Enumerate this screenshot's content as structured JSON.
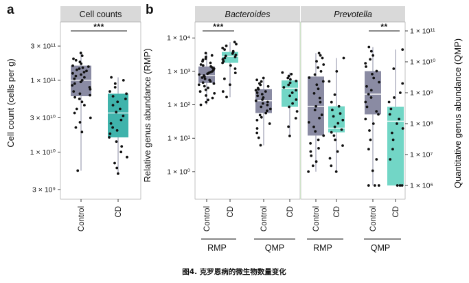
{
  "figure": {
    "caption": "图4. 克罗恩病的微生物数量变化"
  },
  "colors": {
    "control_box": "#8a8ba3",
    "cd_box_a": "#3fb3ab",
    "cd_box_b": "#72d6c6",
    "median": "#ffffff",
    "whisker": "#8a8ba3",
    "strip": "#d9d9d9",
    "points": "#111111"
  },
  "chart_data": [
    {
      "panel": "a",
      "type": "box",
      "title": "Cell counts",
      "ylabel": "Cell count (cells per g)",
      "yscale": "log",
      "ylim": [
        2200000000.0,
        650000000000.0
      ],
      "yticks": [
        {
          "value": 3000000000.0,
          "label": "3 × 10⁹"
        },
        {
          "value": 10000000000.0,
          "label": "1 × 10¹⁰"
        },
        {
          "value": 30000000000.0,
          "label": "3 × 10¹⁰"
        },
        {
          "value": 100000000000.0,
          "label": "1 × 10¹¹"
        },
        {
          "value": 300000000000.0,
          "label": "3 × 10¹¹"
        }
      ],
      "categories": [
        "Control",
        "CD"
      ],
      "boxes": [
        {
          "category": "Control",
          "min": 5500000000.0,
          "q1": 60000000000.0,
          "median": 100000000000.0,
          "q3": 160000000000.0,
          "max": 240000000000.0,
          "points": [
            240000000000.0,
            220000000000.0,
            200000000000.0,
            190000000000.0,
            180000000000.0,
            170000000000.0,
            160000000000.0,
            155000000000.0,
            150000000000.0,
            145000000000.0,
            140000000000.0,
            135000000000.0,
            130000000000.0,
            125000000000.0,
            120000000000.0,
            115000000000.0,
            110000000000.0,
            105000000000.0,
            100000000000.0,
            95000000000.0,
            90000000000.0,
            85000000000.0,
            80000000000.0,
            75000000000.0,
            70000000000.0,
            65000000000.0,
            62000000000.0,
            58000000000.0,
            55000000000.0,
            50000000000.0,
            45000000000.0,
            40000000000.0,
            35000000000.0,
            30000000000.0,
            26000000000.0,
            22000000000.0,
            19000000000.0,
            5500000000.0
          ]
        },
        {
          "category": "CD",
          "min": 5000000000.0,
          "q1": 16000000000.0,
          "median": 35000000000.0,
          "q3": 65000000000.0,
          "max": 110000000000.0,
          "points": [
            110000000000.0,
            100000000000.0,
            90000000000.0,
            80000000000.0,
            70000000000.0,
            65000000000.0,
            60000000000.0,
            55000000000.0,
            50000000000.0,
            45000000000.0,
            40000000000.0,
            36000000000.0,
            32000000000.0,
            28000000000.0,
            25000000000.0,
            22000000000.0,
            20000000000.0,
            18000000000.0,
            16000000000.0,
            14000000000.0,
            12000000000.0,
            10000000000.0,
            8500000000.0,
            7000000000.0,
            6000000000.0,
            5000000000.0
          ]
        }
      ],
      "significance": [
        {
          "label": "***",
          "between": [
            "Control",
            "CD"
          ]
        }
      ]
    },
    {
      "panel": "b",
      "type": "box",
      "facets": [
        "Bacteroides",
        "Prevotella"
      ],
      "ylabel_left": "Relative genus abundance (RMP)",
      "ylabel_right": "Quantitative genus abundance (QMP)",
      "yscale": "log",
      "ylim_left": [
        0.15,
        30000
      ],
      "yticks_left": [
        {
          "value": 1,
          "label": "1 × 10⁰"
        },
        {
          "value": 10,
          "label": "1 × 10¹"
        },
        {
          "value": 100,
          "label": "1 × 10²"
        },
        {
          "value": 1000,
          "label": "1 × 10³"
        },
        {
          "value": 10000,
          "label": "1 × 10⁴"
        }
      ],
      "yticks_right": [
        {
          "value": 1000000.0,
          "label": "1 × 10⁶"
        },
        {
          "value": 10000000.0,
          "label": "1 × 10⁷"
        },
        {
          "value": 100000000.0,
          "label": "1 × 10⁸"
        },
        {
          "value": 1000000000.0,
          "label": "1 × 10⁹"
        },
        {
          "value": 10000000000.0,
          "label": "1 × 10¹⁰"
        },
        {
          "value": 100000000000.0,
          "label": "1 × 10¹¹"
        }
      ],
      "groups": [
        {
          "label": "RMP",
          "facet": "Bacteroides",
          "scale": "left",
          "boxes": [
            {
              "category": "Control",
              "min": 100,
              "q1": 450,
              "median": 750,
              "q3": 1400,
              "max": 3500,
              "points": [
                3500,
                3000,
                2700,
                2400,
                2200,
                2000,
                1800,
                1600,
                1500,
                1400,
                1300,
                1200,
                1100,
                1000,
                950,
                900,
                850,
                800,
                750,
                700,
                650,
                600,
                550,
                500,
                460,
                430,
                400,
                360,
                320,
                280,
                250,
                220,
                190,
                160,
                140,
                120,
                100
              ]
            },
            {
              "category": "CD",
              "min": 170,
              "q1": 1800,
              "median": 2800,
              "q3": 3800,
              "max": 7500,
              "points": [
                7500,
                6500,
                5800,
                5000,
                4500,
                4000,
                3700,
                3400,
                3100,
                2900,
                2700,
                2500,
                2300,
                2000,
                1800,
                1500,
                1200,
                900,
                600,
                400,
                250,
                170
              ]
            }
          ],
          "significance": {
            "label": "***"
          }
        },
        {
          "label": "QMP",
          "facet": "Bacteroides",
          "scale": "right",
          "boxes": [
            {
              "category": "Control",
              "min": 20000000.0,
              "q1": 220000000.0,
              "median": 550000000.0,
              "q3": 1300000000.0,
              "max": 3000000000.0,
              "points": [
                3000000000.0,
                2600000000.0,
                2300000000.0,
                2000000000.0,
                1800000000.0,
                1600000000.0,
                1400000000.0,
                1300000000.0,
                1200000000.0,
                1100000000.0,
                1000000000.0,
                900000000.0,
                800000000.0,
                700000000.0,
                600000000.0,
                550000000.0,
                500000000.0,
                450000000.0,
                400000000.0,
                350000000.0,
                300000000.0,
                260000000.0,
                220000000.0,
                190000000.0,
                160000000.0,
                130000000.0,
                100000000.0,
                70000000.0,
                50000000.0,
                35000000.0,
                20000000.0
              ]
            },
            {
              "category": "CD",
              "min": 40000000.0,
              "q1": 350000000.0,
              "median": 1400000000.0,
              "q3": 2500000000.0,
              "max": 4500000000.0,
              "points": [
                4500000000.0,
                4000000000.0,
                3500000000.0,
                3000000000.0,
                2700000000.0,
                2400000000.0,
                2100000000.0,
                1800000000.0,
                1500000000.0,
                1200000000.0,
                1000000000.0,
                800000000.0,
                600000000.0,
                450000000.0,
                350000000.0,
                250000000.0,
                150000000.0,
                80000000.0,
                40000000.0
              ]
            }
          ]
        },
        {
          "label": "RMP",
          "facet": "Prevotella",
          "scale": "left",
          "boxes": [
            {
              "category": "Control",
              "min": 1.0,
              "q1": 12,
              "median": 90,
              "q3": 700,
              "max": 3500,
              "points": [
                3500,
                3000,
                2500,
                2000,
                1600,
                1300,
                1000,
                800,
                650,
                500,
                400,
                300,
                220,
                160,
                120,
                90,
                70,
                50,
                40,
                30,
                22,
                16,
                12,
                9,
                7,
                5,
                4,
                3,
                2,
                1.5,
                1.0
              ]
            },
            {
              "category": "CD",
              "min": 1.0,
              "q1": 15,
              "median": 20,
              "q3": 90,
              "max": 2500,
              "points": [
                2500,
                1000,
                500,
                200,
                120,
                90,
                70,
                55,
                45,
                35,
                28,
                22,
                18,
                15,
                12,
                9,
                6,
                4,
                2.5,
                1.5,
                1.0
              ]
            }
          ]
        },
        {
          "label": "QMP",
          "facet": "Prevotella",
          "scale": "right",
          "boxes": [
            {
              "category": "Control",
              "min": 1000000.0,
              "q1": 200000000.0,
              "median": 900000000.0,
              "q3": 5000000000.0,
              "max": 30000000000.0,
              "points": [
                30000000000.0,
                22000000000.0,
                16000000000.0,
                12000000000.0,
                9000000000.0,
                7000000000.0,
                5000000000.0,
                4000000000.0,
                3000000000.0,
                2200000000.0,
                1600000000.0,
                1200000000.0,
                900000000.0,
                700000000.0,
                500000000.0,
                350000000.0,
                250000000.0,
                200000000.0,
                140000000.0,
                100000000.0,
                60000000.0,
                30000000.0,
                15000000.0,
                7000000.0,
                3000000.0,
                1000000.0,
                1000000.0,
                1000000.0
              ]
            },
            {
              "category": "CD",
              "min": 1000000.0,
              "q1": 1000000.0,
              "median": 120000000.0,
              "q3": 350000000.0,
              "max": 25000000000.0,
              "points": [
                25000000000.0,
                6000000000.0,
                2000000000.0,
                1000000000.0,
                700000000.0,
                500000000.0,
                300000000.0,
                200000000.0,
                140000000.0,
                100000000.0,
                70000000.0,
                50000000.0,
                30000000.0,
                15000000.0,
                7000000.0,
                1000000.0,
                1000000.0,
                1000000.0
              ]
            }
          ],
          "significance": {
            "label": "**"
          }
        }
      ]
    }
  ]
}
